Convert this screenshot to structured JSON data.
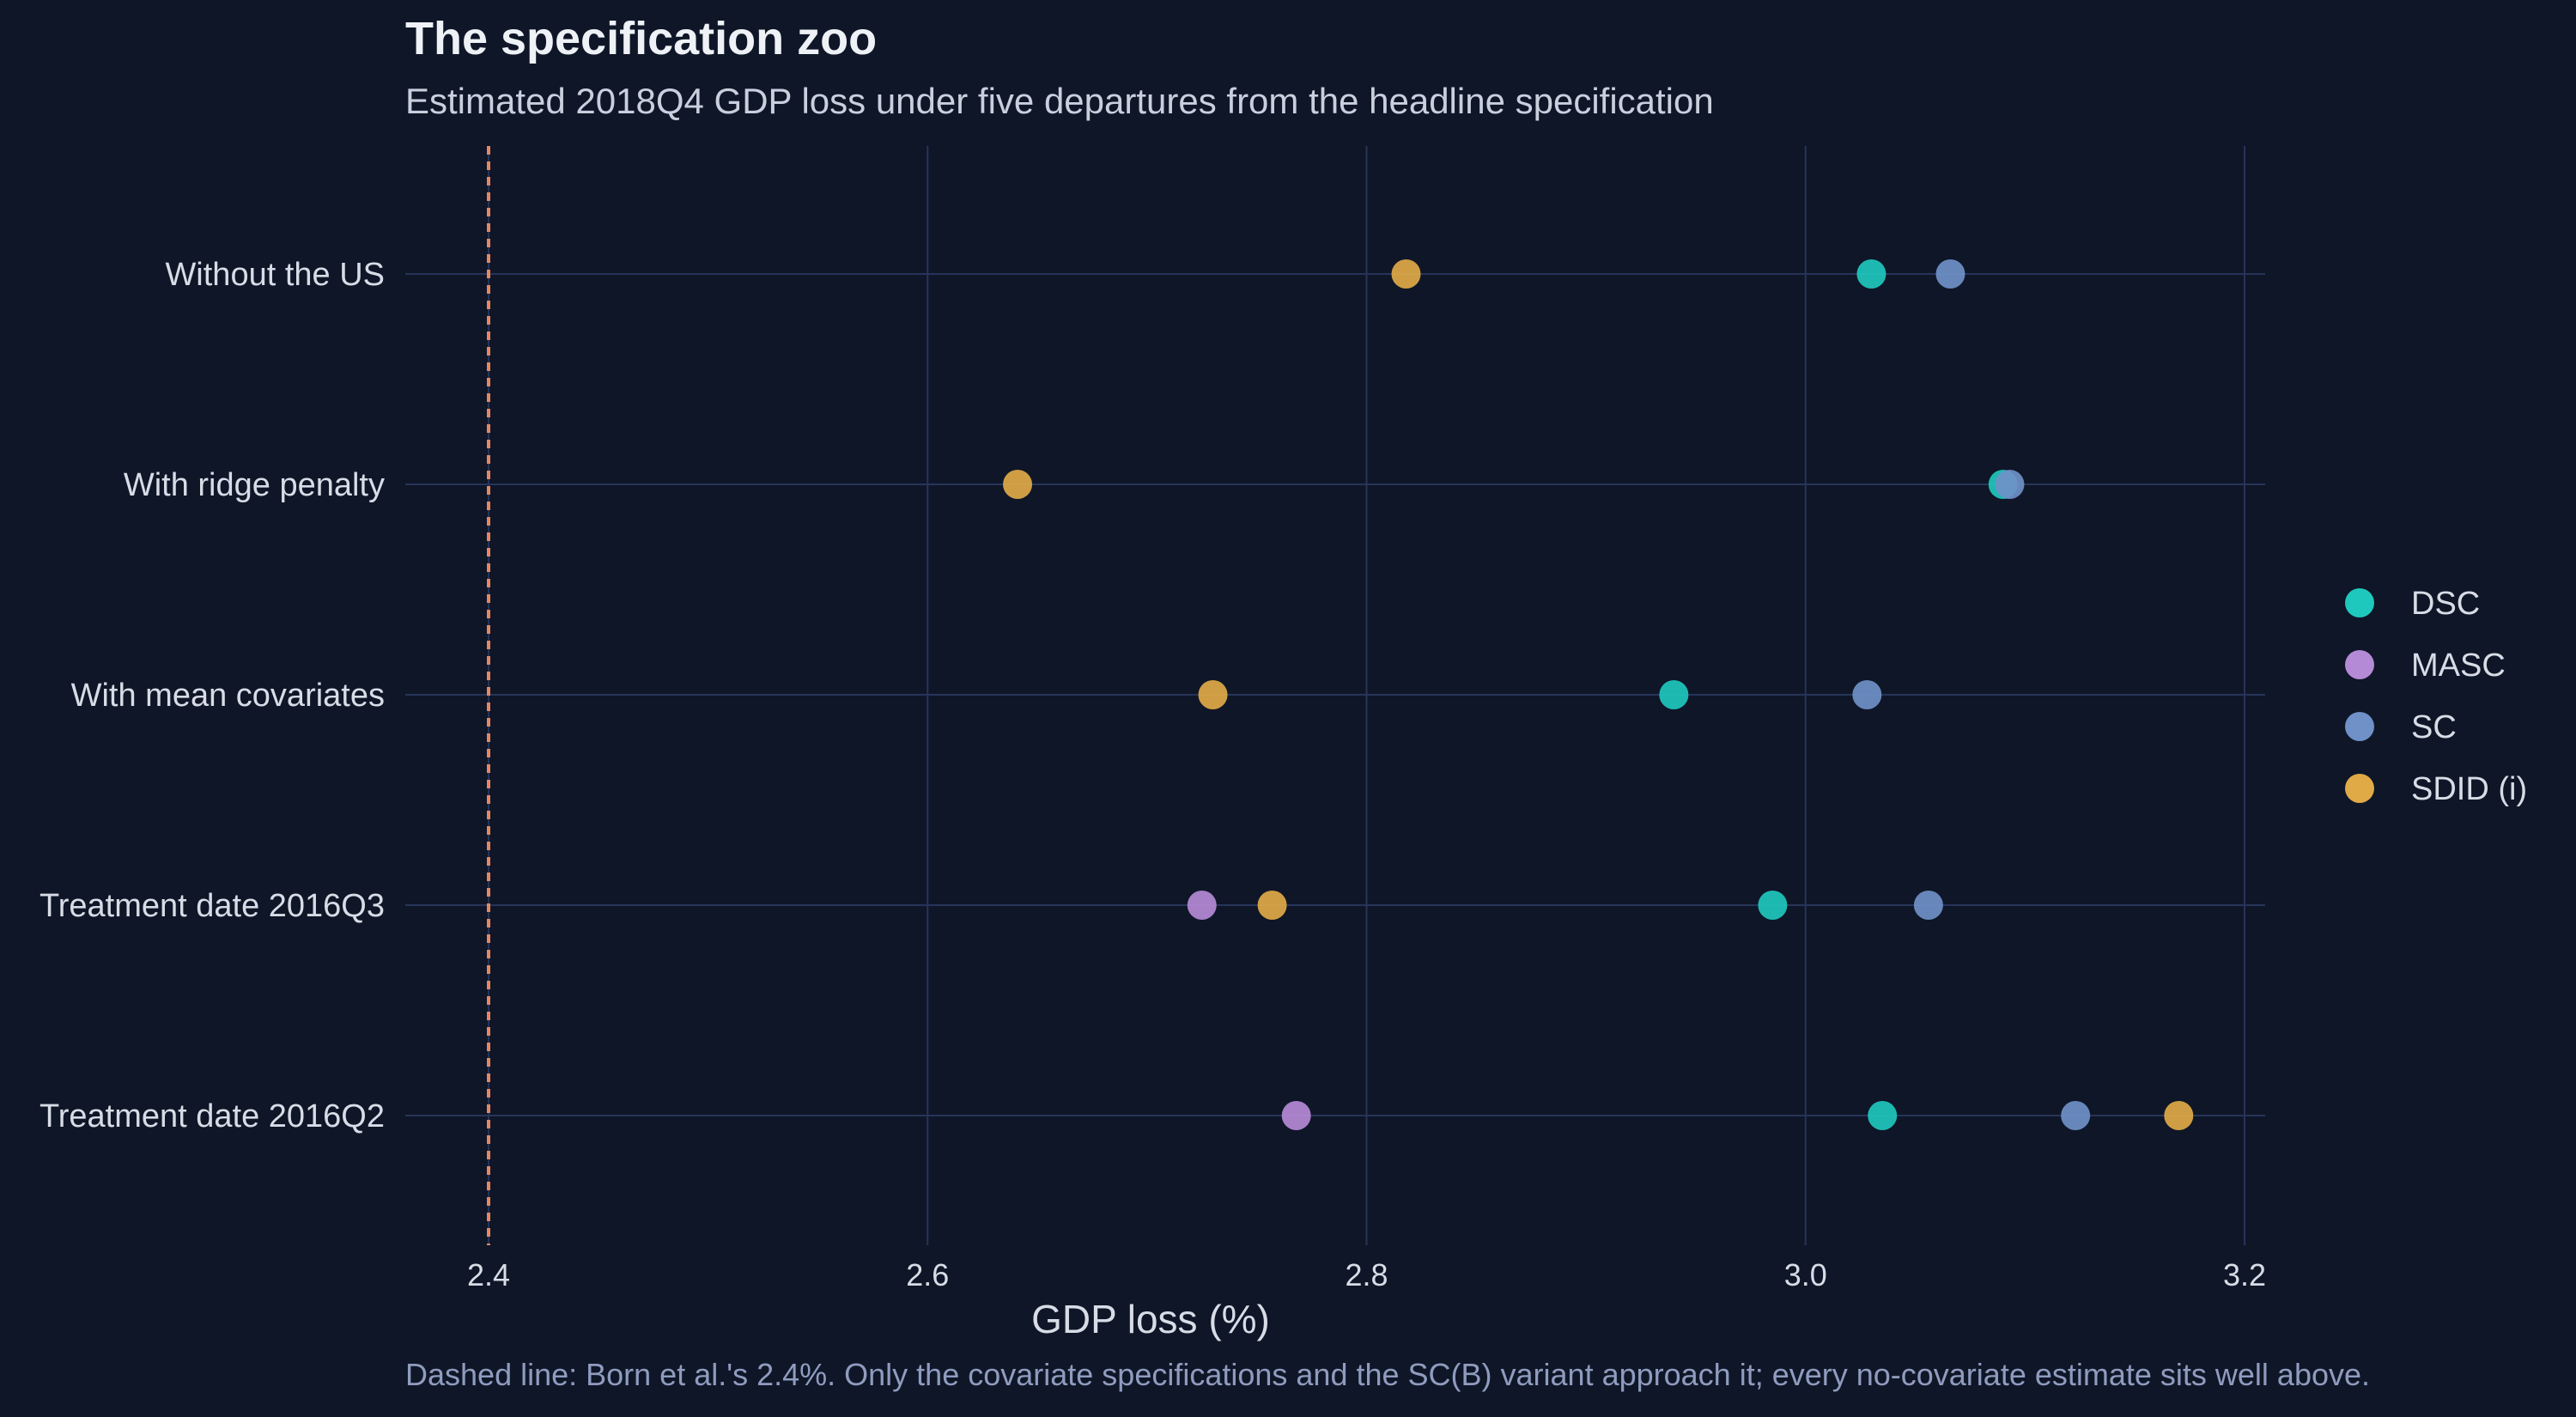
{
  "chart_data": {
    "type": "scatter",
    "title": "The specification zoo",
    "subtitle": "Estimated 2018Q4 GDP loss under five departures from the headline specification",
    "xlabel": "GDP loss (%)",
    "ylabel": "",
    "xlim": [
      2.36,
      3.21
    ],
    "x_ticks": [
      "2.4",
      "2.6",
      "2.8",
      "3.0",
      "3.2"
    ],
    "categories": [
      "Without the US",
      "With ridge penalty",
      "With mean covariates",
      "Treatment date 2016Q3",
      "Treatment date 2016Q2"
    ],
    "series": [
      {
        "name": "DSC",
        "color": "#1ec8bd",
        "values": [
          3.03,
          3.09,
          2.94,
          2.985,
          3.035
        ]
      },
      {
        "name": "MASC",
        "color": "#b48ad6",
        "values": [
          null,
          null,
          null,
          2.725,
          2.768
        ]
      },
      {
        "name": "SC",
        "color": "#6f91c7",
        "values": [
          3.066,
          3.093,
          3.028,
          3.056,
          3.123
        ]
      },
      {
        "name": "SDID (i)",
        "color": "#e0aa47",
        "values": [
          2.818,
          2.641,
          2.73,
          2.757,
          3.17
        ]
      }
    ],
    "reference_line": {
      "x": 2.4,
      "style": "dashed",
      "color": "#e58762"
    },
    "legend_position": "right",
    "grid": true,
    "caption": "Dashed line: Born et al.'s 2.4%. Only the covariate specifications and the SC(B) variant approach it; every no-covariate estimate sits well above."
  }
}
